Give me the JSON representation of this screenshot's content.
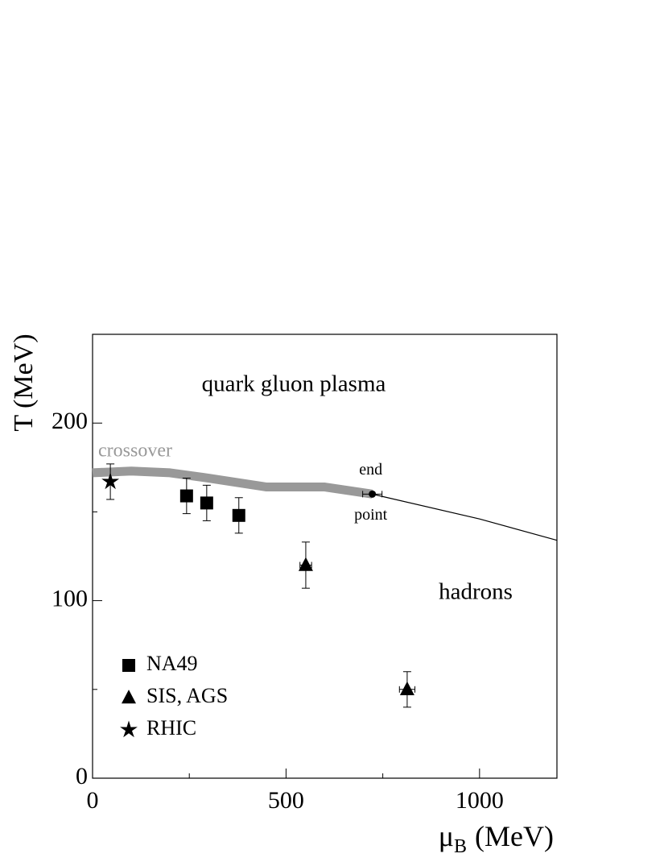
{
  "chart_data": {
    "type": "scatter",
    "y_label": "T (MeV)",
    "x_label": {
      "symbol": "μ",
      "subscript": "B",
      "unit": "(MeV)"
    },
    "xlim": [
      0,
      1200
    ],
    "ylim": [
      0,
      250
    ],
    "xticks": [
      0,
      500,
      1000
    ],
    "xticks_minor": [
      250,
      750
    ],
    "yticks": [
      0,
      100,
      200
    ],
    "yticks_minor": [
      50,
      150
    ],
    "series": [
      {
        "name": "NA49",
        "marker": "square",
        "color": "#000000",
        "x": [
          243,
          295,
          378
        ],
        "values": [
          159,
          155,
          148
        ],
        "yerr": [
          10,
          10,
          10
        ]
      },
      {
        "name": "SIS, AGS",
        "marker": "triangle",
        "color": "#000000",
        "x": [
          551,
          813
        ],
        "values": [
          120,
          50
        ],
        "yerr": [
          13,
          10
        ],
        "xerr": [
          15,
          20
        ]
      },
      {
        "name": "RHIC",
        "marker": "star",
        "color": "#000000",
        "x": [
          46
        ],
        "values": [
          167
        ],
        "yerr": [
          10
        ]
      }
    ],
    "crossover": {
      "name": "crossover",
      "color": "#999999",
      "x": [
        0,
        100,
        200,
        300,
        450,
        600,
        723
      ],
      "values": [
        172,
        173,
        172,
        169,
        164,
        164,
        160
      ]
    },
    "transition_line": {
      "x": [
        723,
        1000,
        1200
      ],
      "values": [
        160,
        146,
        134
      ]
    },
    "endpoint": {
      "x": 723,
      "value": 160,
      "xerr": 25,
      "label_top": "end",
      "label_bottom": "point"
    },
    "annotations": [
      {
        "text": "quark gluon plasma",
        "x": 520,
        "y": 221
      },
      {
        "text": "hadrons",
        "x": 990,
        "y": 104
      }
    ]
  }
}
